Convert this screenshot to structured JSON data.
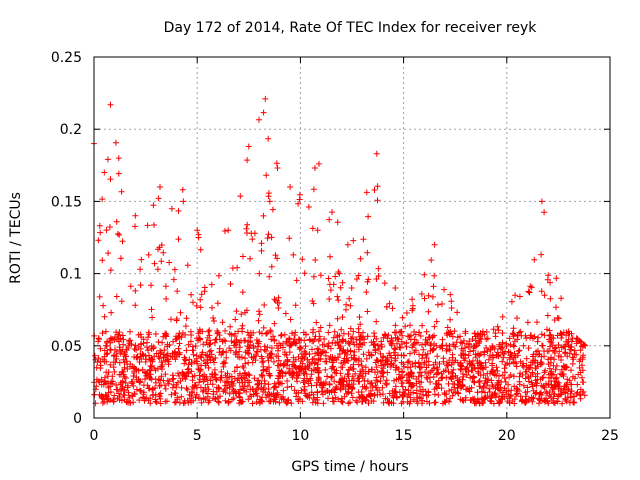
{
  "chart_data": {
    "type": "scatter",
    "title": "Day 172 of 2014, Rate Of TEC Index for receiver reyk",
    "xlabel": "GPS time / hours",
    "ylabel": "ROTI / TECUs",
    "xlim": [
      0,
      25
    ],
    "ylim": [
      0,
      0.25
    ],
    "xticks": [
      "0",
      "5",
      "10",
      "15",
      "20",
      "25"
    ],
    "yticks": [
      "0",
      "0.05",
      "0.1",
      "0.15",
      "0.2",
      "0.25"
    ],
    "grid": true,
    "marker": "+",
    "color": "#ff0000",
    "series": [
      {
        "name": "ROTI",
        "x_range": [
          0,
          23.8
        ],
        "typical_range": [
          0.01,
          0.06
        ],
        "envelope": [
          {
            "x": 0.0,
            "max": 0.19
          },
          {
            "x": 0.5,
            "max": 0.17
          },
          {
            "x": 0.8,
            "max": 0.217
          },
          {
            "x": 1.2,
            "max": 0.18
          },
          {
            "x": 2.0,
            "max": 0.14
          },
          {
            "x": 3.2,
            "max": 0.16
          },
          {
            "x": 4.3,
            "max": 0.158
          },
          {
            "x": 5.0,
            "max": 0.13
          },
          {
            "x": 6.5,
            "max": 0.13
          },
          {
            "x": 7.5,
            "max": 0.188
          },
          {
            "x": 8.3,
            "max": 0.221
          },
          {
            "x": 9.5,
            "max": 0.16
          },
          {
            "x": 10.9,
            "max": 0.176
          },
          {
            "x": 12.3,
            "max": 0.12
          },
          {
            "x": 13.7,
            "max": 0.183
          },
          {
            "x": 14.6,
            "max": 0.09
          },
          {
            "x": 16.5,
            "max": 0.12
          },
          {
            "x": 18.0,
            "max": 0.06
          },
          {
            "x": 19.8,
            "max": 0.07
          },
          {
            "x": 20.4,
            "max": 0.085
          },
          {
            "x": 21.7,
            "max": 0.15
          },
          {
            "x": 23.0,
            "max": 0.06
          },
          {
            "x": 23.8,
            "max": 0.05
          }
        ]
      }
    ]
  }
}
